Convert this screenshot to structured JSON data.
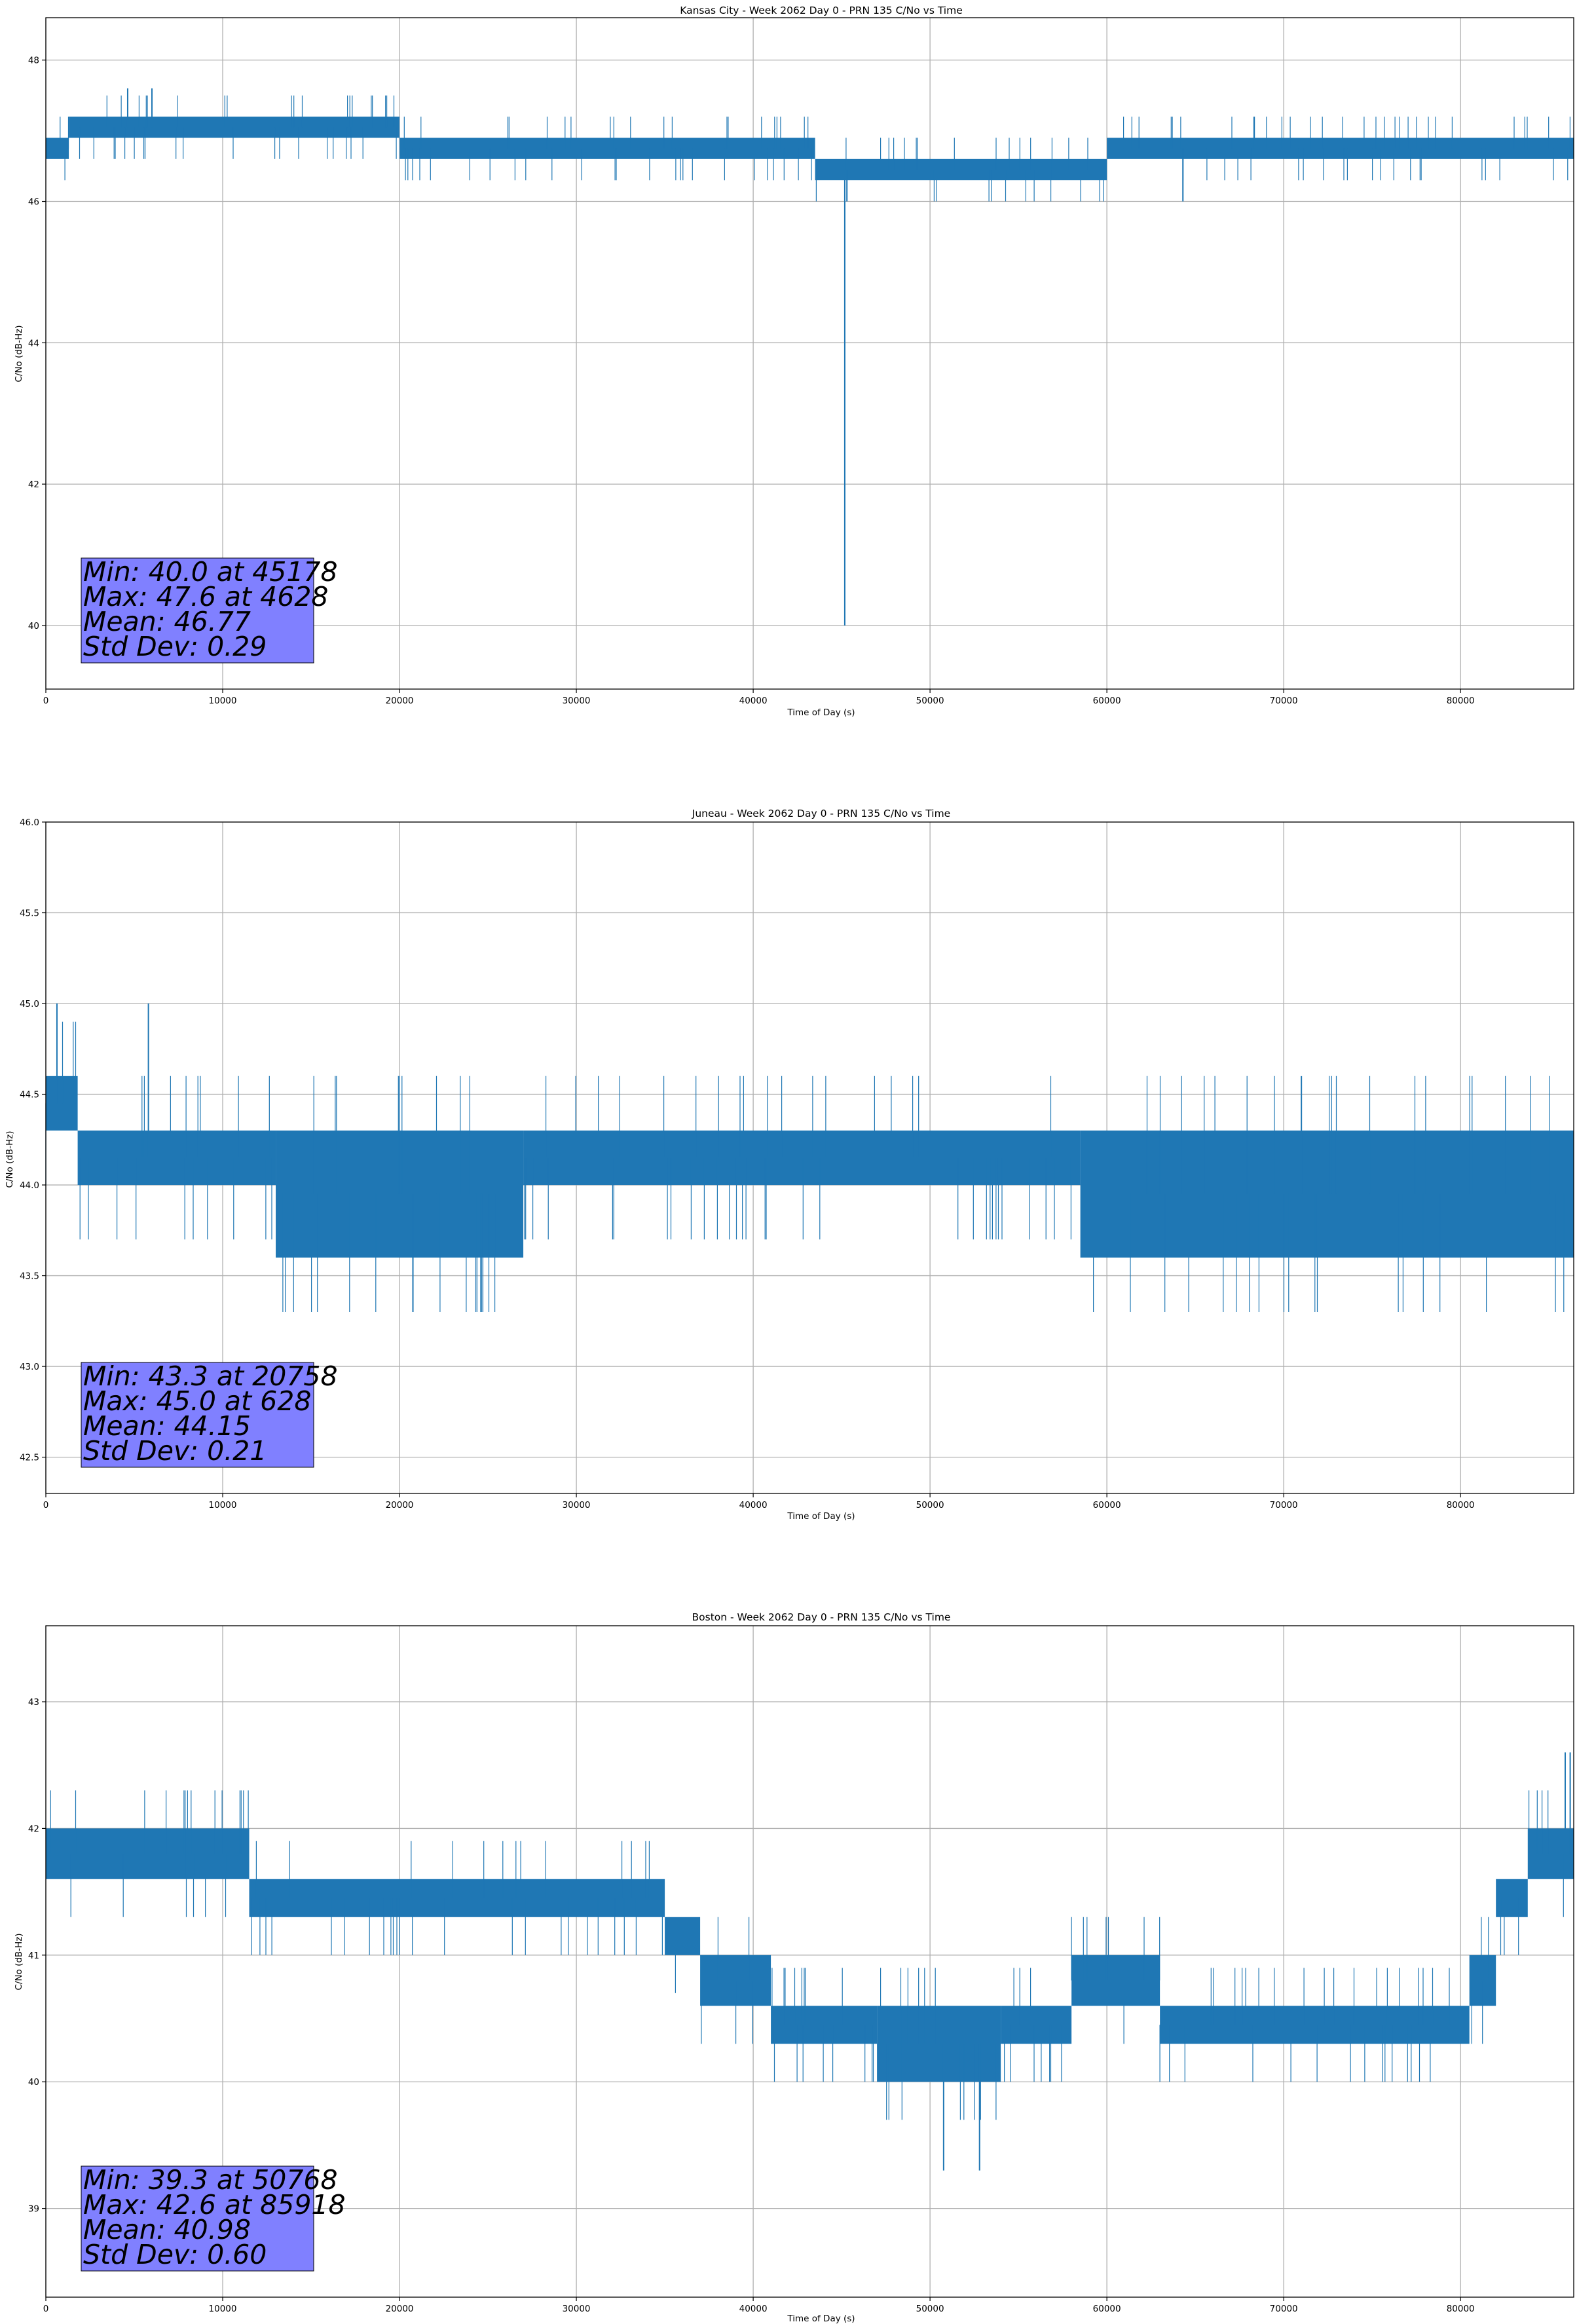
{
  "chart_data": [
    {
      "type": "line",
      "title": "Kansas City - Week 2062 Day 0 - PRN 135 C/No vs Time",
      "xlabel": "Time of Day (s)",
      "ylabel": "C/No (dB-Hz)",
      "xlim": [
        0,
        86400
      ],
      "ylim": [
        39.1,
        48.6
      ],
      "xticks": [
        0,
        10000,
        20000,
        30000,
        40000,
        50000,
        60000,
        70000,
        80000
      ],
      "yticks": [
        40,
        42,
        44,
        46,
        48
      ],
      "ytick_labels": [
        "40",
        "42",
        "44",
        "46",
        "48"
      ],
      "grid": true,
      "line_color": "#1f77b4",
      "stats_box_color": "#8080ff",
      "stats": [
        "Min: 40.0 at 45178",
        "Max: 47.6 at 4628",
        "Mean: 46.77",
        "Std Dev: 0.29"
      ],
      "series": [
        {
          "band": [
            {
              "x": [
                0,
                1300
              ],
              "low": 46.6,
              "high": 46.9
            },
            {
              "x": [
                1300,
                20000
              ],
              "low": 46.9,
              "high": 47.2
            },
            {
              "x": [
                20000,
                43500
              ],
              "low": 46.6,
              "high": 46.9
            },
            {
              "x": [
                43500,
                60000
              ],
              "low": 46.3,
              "high": 46.6
            },
            {
              "x": [
                60000,
                86400
              ],
              "low": 46.6,
              "high": 46.9
            }
          ],
          "events": [
            {
              "x": 4628,
              "y": 47.6
            },
            {
              "x": 6000,
              "y": 47.6
            },
            {
              "x": 45178,
              "y": 40.0
            },
            {
              "x": 45300,
              "y": 46.0
            },
            {
              "x": 64300,
              "y": 46.0
            }
          ]
        }
      ]
    },
    {
      "type": "line",
      "title": "Juneau - Week 2062 Day 0 - PRN 135 C/No vs Time",
      "xlabel": "Time of Day (s)",
      "ylabel": "C/No (dB-Hz)",
      "xlim": [
        0,
        86400
      ],
      "ylim": [
        42.3,
        46.0
      ],
      "xticks": [
        0,
        10000,
        20000,
        30000,
        40000,
        50000,
        60000,
        70000,
        80000
      ],
      "yticks": [
        42.5,
        43.0,
        43.5,
        44.0,
        44.5,
        45.0,
        45.5,
        46.0
      ],
      "ytick_labels": [
        "42.5",
        "43.0",
        "43.5",
        "44.0",
        "44.5",
        "45.0",
        "45.5",
        "46.0"
      ],
      "grid": true,
      "line_color": "#1f77b4",
      "stats_box_color": "#8080ff",
      "stats": [
        "Min: 43.3 at 20758",
        "Max: 45.0 at 628",
        "Mean: 44.15",
        "Std Dev: 0.21"
      ],
      "series": [
        {
          "band": [
            {
              "x": [
                0,
                1800
              ],
              "low": 44.3,
              "high": 44.6
            },
            {
              "x": [
                1800,
                13000
              ],
              "low": 44.0,
              "high": 44.3
            },
            {
              "x": [
                13000,
                27000
              ],
              "low": 43.6,
              "high": 44.3
            },
            {
              "x": [
                27000,
                58500
              ],
              "low": 44.0,
              "high": 44.3
            },
            {
              "x": [
                58500,
                86400
              ],
              "low": 43.6,
              "high": 44.3
            }
          ],
          "events": [
            {
              "x": 628,
              "y": 45.0
            },
            {
              "x": 5800,
              "y": 45.0
            },
            {
              "x": 20758,
              "y": 43.3
            },
            {
              "x": 71000,
              "y": 44.6
            }
          ]
        }
      ]
    },
    {
      "type": "line",
      "title": "Boston - Week 2062 Day 0 - PRN 135 C/No vs Time",
      "xlabel": "Time of Day (s)",
      "ylabel": "C/No (dB-Hz)",
      "xlim": [
        0,
        86400
      ],
      "ylim": [
        38.3,
        43.6
      ],
      "xticks": [
        0,
        10000,
        20000,
        30000,
        40000,
        50000,
        60000,
        70000,
        80000
      ],
      "yticks": [
        39,
        40,
        41,
        42,
        43
      ],
      "ytick_labels": [
        "39",
        "40",
        "41",
        "42",
        "43"
      ],
      "grid": true,
      "line_color": "#1f77b4",
      "stats_box_color": "#8080ff",
      "stats": [
        "Min: 39.3 at 50768",
        "Max: 42.6 at 85918",
        "Mean: 40.98",
        "Std Dev: 0.60"
      ],
      "series": [
        {
          "band": [
            {
              "x": [
                0,
                11500
              ],
              "low": 41.6,
              "high": 42.0
            },
            {
              "x": [
                11500,
                35000
              ],
              "low": 41.3,
              "high": 41.6
            },
            {
              "x": [
                35000,
                37000
              ],
              "low": 41.0,
              "high": 41.3
            },
            {
              "x": [
                37000,
                41000
              ],
              "low": 40.6,
              "high": 41.0
            },
            {
              "x": [
                41000,
                47000
              ],
              "low": 40.3,
              "high": 40.6
            },
            {
              "x": [
                47000,
                54000
              ],
              "low": 40.0,
              "high": 40.6
            },
            {
              "x": [
                54000,
                58000
              ],
              "low": 40.3,
              "high": 40.6
            },
            {
              "x": [
                58000,
                63000
              ],
              "low": 40.6,
              "high": 41.0
            },
            {
              "x": [
                63000,
                80500
              ],
              "low": 40.3,
              "high": 40.6
            },
            {
              "x": [
                80500,
                82000
              ],
              "low": 40.6,
              "high": 41.0
            },
            {
              "x": [
                82000,
                83800
              ],
              "low": 41.3,
              "high": 41.6
            },
            {
              "x": [
                83800,
                86400
              ],
              "low": 41.6,
              "high": 42.0
            }
          ],
          "events": [
            {
              "x": 50768,
              "y": 39.3
            },
            {
              "x": 52800,
              "y": 39.3
            },
            {
              "x": 85918,
              "y": 42.6
            },
            {
              "x": 86200,
              "y": 42.6
            }
          ]
        }
      ]
    }
  ]
}
